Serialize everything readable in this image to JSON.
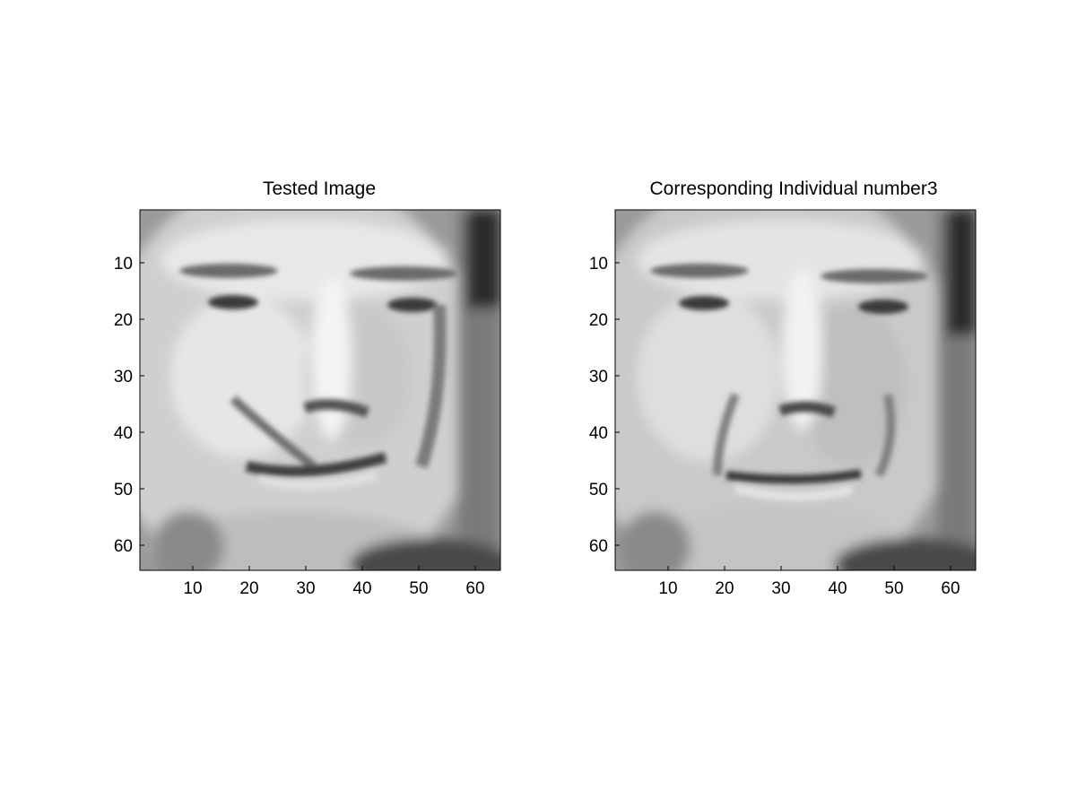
{
  "figure": {
    "panels": [
      {
        "title": "Tested Image",
        "xticks": [
          "10",
          "20",
          "30",
          "40",
          "50",
          "60"
        ],
        "yticks": [
          "10",
          "20",
          "30",
          "40",
          "50",
          "60"
        ],
        "image": "grayscale-face-smiling",
        "xlim": [
          0.5,
          64.5
        ],
        "ylim": [
          0.5,
          64.5
        ]
      },
      {
        "title": "Corresponding Individual number3",
        "xticks": [
          "10",
          "20",
          "30",
          "40",
          "50",
          "60"
        ],
        "yticks": [
          "10",
          "20",
          "30",
          "40",
          "50",
          "60"
        ],
        "image": "grayscale-face-neutral",
        "xlim": [
          0.5,
          64.5
        ],
        "ylim": [
          0.5,
          64.5
        ]
      }
    ]
  }
}
